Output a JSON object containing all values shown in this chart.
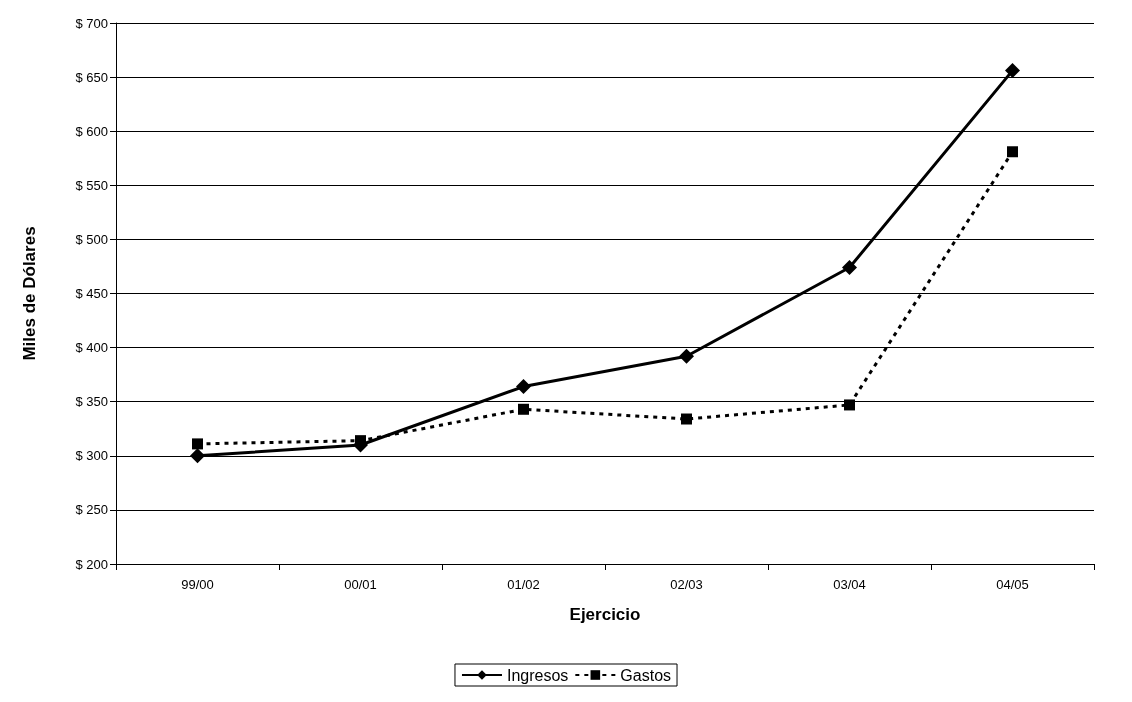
{
  "chart_data": {
    "type": "line",
    "xlabel": "Ejercicio",
    "ylabel": "Miles de Dólares",
    "categories": [
      "99/00",
      "00/01",
      "01/02",
      "02/03",
      "03/04",
      "04/05"
    ],
    "series": [
      {
        "name": "Ingresos",
        "color": "#000000",
        "marker": "diamond",
        "line_style": "solid",
        "values": [
          300,
          310,
          364,
          392,
          474,
          656
        ]
      },
      {
        "name": "Gastos",
        "color": "#000000",
        "marker": "square",
        "line_style": "dashed",
        "values": [
          311,
          314,
          343,
          334,
          347,
          581
        ]
      }
    ],
    "ylim": [
      200,
      700
    ],
    "yticks": [
      {
        "value": 200,
        "label": "$ 200"
      },
      {
        "value": 250,
        "label": "$ 250"
      },
      {
        "value": 300,
        "label": "$ 300"
      },
      {
        "value": 350,
        "label": "$ 350"
      },
      {
        "value": 400,
        "label": "$ 400"
      },
      {
        "value": 450,
        "label": "$ 450"
      },
      {
        "value": 500,
        "label": "$ 500"
      },
      {
        "value": 550,
        "label": "$ 550"
      },
      {
        "value": 600,
        "label": "$ 600"
      },
      {
        "value": 650,
        "label": "$ 650"
      },
      {
        "value": 700,
        "label": "$ 700"
      }
    ],
    "grid": "y",
    "legend": "bottom"
  }
}
